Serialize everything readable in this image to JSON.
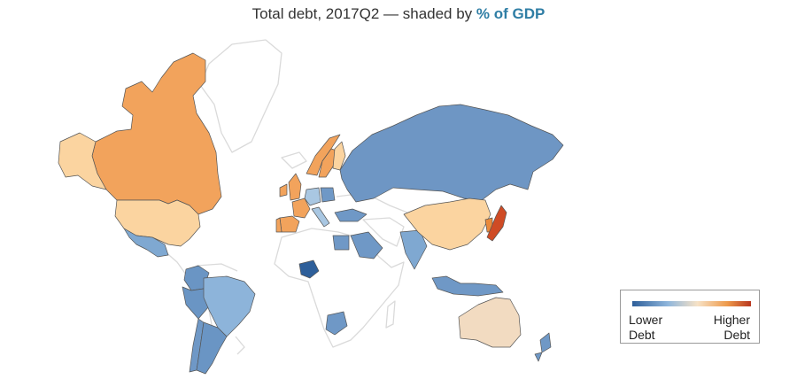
{
  "title": {
    "prefix": "Total debt, 2017Q2 — shaded by ",
    "measure": "% of GDP"
  },
  "legend": {
    "low_line1": "Lower",
    "low_line2": "Debt",
    "high_line1": "Higher",
    "high_line2": "Debt"
  },
  "colors": {
    "accent": "#2f7ea5",
    "no_data": "#eeeeee",
    "scale": [
      "#2e5f9a",
      "#6f98c6",
      "#a9c7e2",
      "#f7e2c6",
      "#f6b274",
      "#ea8a3b",
      "#b8361e"
    ]
  },
  "countries": [
    {
      "name": "Canada",
      "color": "#f2a35c"
    },
    {
      "name": "Alaska",
      "color": "#fbd4a0"
    },
    {
      "name": "United States",
      "color": "#fbd4a0"
    },
    {
      "name": "Mexico",
      "color": "#7fa8d1"
    },
    {
      "name": "Colombia",
      "color": "#6a95c4"
    },
    {
      "name": "Peru",
      "color": "#6a95c4"
    },
    {
      "name": "Brazil",
      "color": "#8db4da"
    },
    {
      "name": "Chile",
      "color": "#6f98c6"
    },
    {
      "name": "Argentina",
      "color": "#6a95c4"
    },
    {
      "name": "Greenland",
      "color": "#eeeeee"
    },
    {
      "name": "Norway",
      "color": "#f2a35c"
    },
    {
      "name": "Sweden",
      "color": "#f2a35c"
    },
    {
      "name": "Finland",
      "color": "#fbd4a0"
    },
    {
      "name": "United Kingdom",
      "color": "#f2a35c"
    },
    {
      "name": "Ireland",
      "color": "#f2a35c"
    },
    {
      "name": "France",
      "color": "#f2a35c"
    },
    {
      "name": "Spain",
      "color": "#f2a35c"
    },
    {
      "name": "Portugal",
      "color": "#f2a35c"
    },
    {
      "name": "Germany",
      "color": "#a9c7e2"
    },
    {
      "name": "Poland",
      "color": "#6f98c6"
    },
    {
      "name": "Italy",
      "color": "#a9c7e2"
    },
    {
      "name": "Russia",
      "color": "#6e96c4"
    },
    {
      "name": "Turkey",
      "color": "#6f98c6"
    },
    {
      "name": "Saudi Arabia",
      "color": "#6f98c6"
    },
    {
      "name": "India",
      "color": "#7fa8d1"
    },
    {
      "name": "China",
      "color": "#fbd4a0"
    },
    {
      "name": "Korea",
      "color": "#ea8a3b"
    },
    {
      "name": "Japan",
      "color": "#cf4b25"
    },
    {
      "name": "Indonesia",
      "color": "#6f98c6"
    },
    {
      "name": "Australia",
      "color": "#f2dbc1"
    },
    {
      "name": "New Zealand",
      "color": "#6f98c6"
    },
    {
      "name": "South Africa",
      "color": "#6f98c6"
    },
    {
      "name": "Nigeria",
      "color": "#2e5f9a"
    },
    {
      "name": "Egypt",
      "color": "#6f98c6"
    }
  ]
}
